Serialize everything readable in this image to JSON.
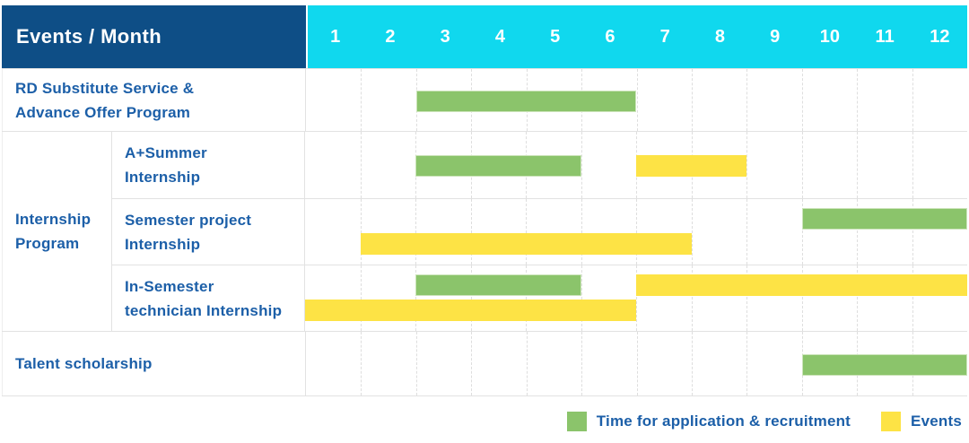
{
  "table": {
    "header": {
      "label": "Events / Month",
      "months": [
        "1",
        "2",
        "3",
        "4",
        "5",
        "6",
        "7",
        "8",
        "9",
        "10",
        "11",
        "12"
      ]
    },
    "group_label_lines": [
      "Internship",
      "Program"
    ]
  },
  "chart_data": {
    "type": "gantt",
    "x_unit": "month",
    "x_range": [
      1,
      12
    ],
    "columns": 12,
    "legend_position": "bottom-right",
    "legend": [
      {
        "key": "application",
        "label": "Time for application & recruitment",
        "color": "#8bc46b"
      },
      {
        "key": "events",
        "label": "Events",
        "color": "#fde345"
      }
    ],
    "rows": [
      {
        "id": "rd-substitute-service",
        "group": null,
        "label_lines": [
          "RD Substitute Service &",
          "Advance Offer Program"
        ],
        "bars": [
          {
            "color": "green",
            "type": "application",
            "start": 3,
            "end": 6,
            "lane": "mid"
          }
        ]
      },
      {
        "id": "a-plus-summer-internship",
        "group": "Internship Program",
        "label_lines": [
          "A+Summer",
          "Internship"
        ],
        "bars": [
          {
            "color": "green",
            "type": "application",
            "start": 3,
            "end": 5,
            "lane": "mid"
          },
          {
            "color": "yellow",
            "type": "events",
            "start": 7,
            "end": 8,
            "lane": "mid"
          }
        ]
      },
      {
        "id": "semester-project-internship",
        "group": "Internship Program",
        "label_lines": [
          "Semester project",
          "Internship"
        ],
        "bars": [
          {
            "color": "green",
            "type": "application",
            "start": 10,
            "end": 12,
            "lane": "top"
          },
          {
            "color": "yellow",
            "type": "events",
            "start": 2,
            "end": 7,
            "lane": "bottom"
          }
        ]
      },
      {
        "id": "in-semester-technician-internship",
        "group": "Internship Program",
        "label_lines": [
          "In-Semester",
          "technician Internship"
        ],
        "bars": [
          {
            "color": "green",
            "type": "application",
            "start": 3,
            "end": 5,
            "lane": "top"
          },
          {
            "color": "yellow",
            "type": "events",
            "start": 7,
            "end": 12,
            "lane": "top"
          },
          {
            "color": "yellow",
            "type": "events",
            "start": 1,
            "end": 6,
            "lane": "bottom"
          }
        ]
      },
      {
        "id": "talent-scholarship",
        "group": null,
        "label_lines": [
          "Talent scholarship"
        ],
        "bars": [
          {
            "color": "green",
            "type": "application",
            "start": 10,
            "end": 12,
            "lane": "mid"
          }
        ]
      }
    ]
  },
  "legend": {
    "application_label": "Time for application & recruitment",
    "events_label": "Events"
  },
  "colors": {
    "header_bg": "#0e4e86",
    "month_header_bg": "#10d8ee",
    "application_green": "#8bc46b",
    "events_yellow": "#fde345",
    "text_blue": "#1c5fa8",
    "grid_line": "#e2e2e2"
  }
}
